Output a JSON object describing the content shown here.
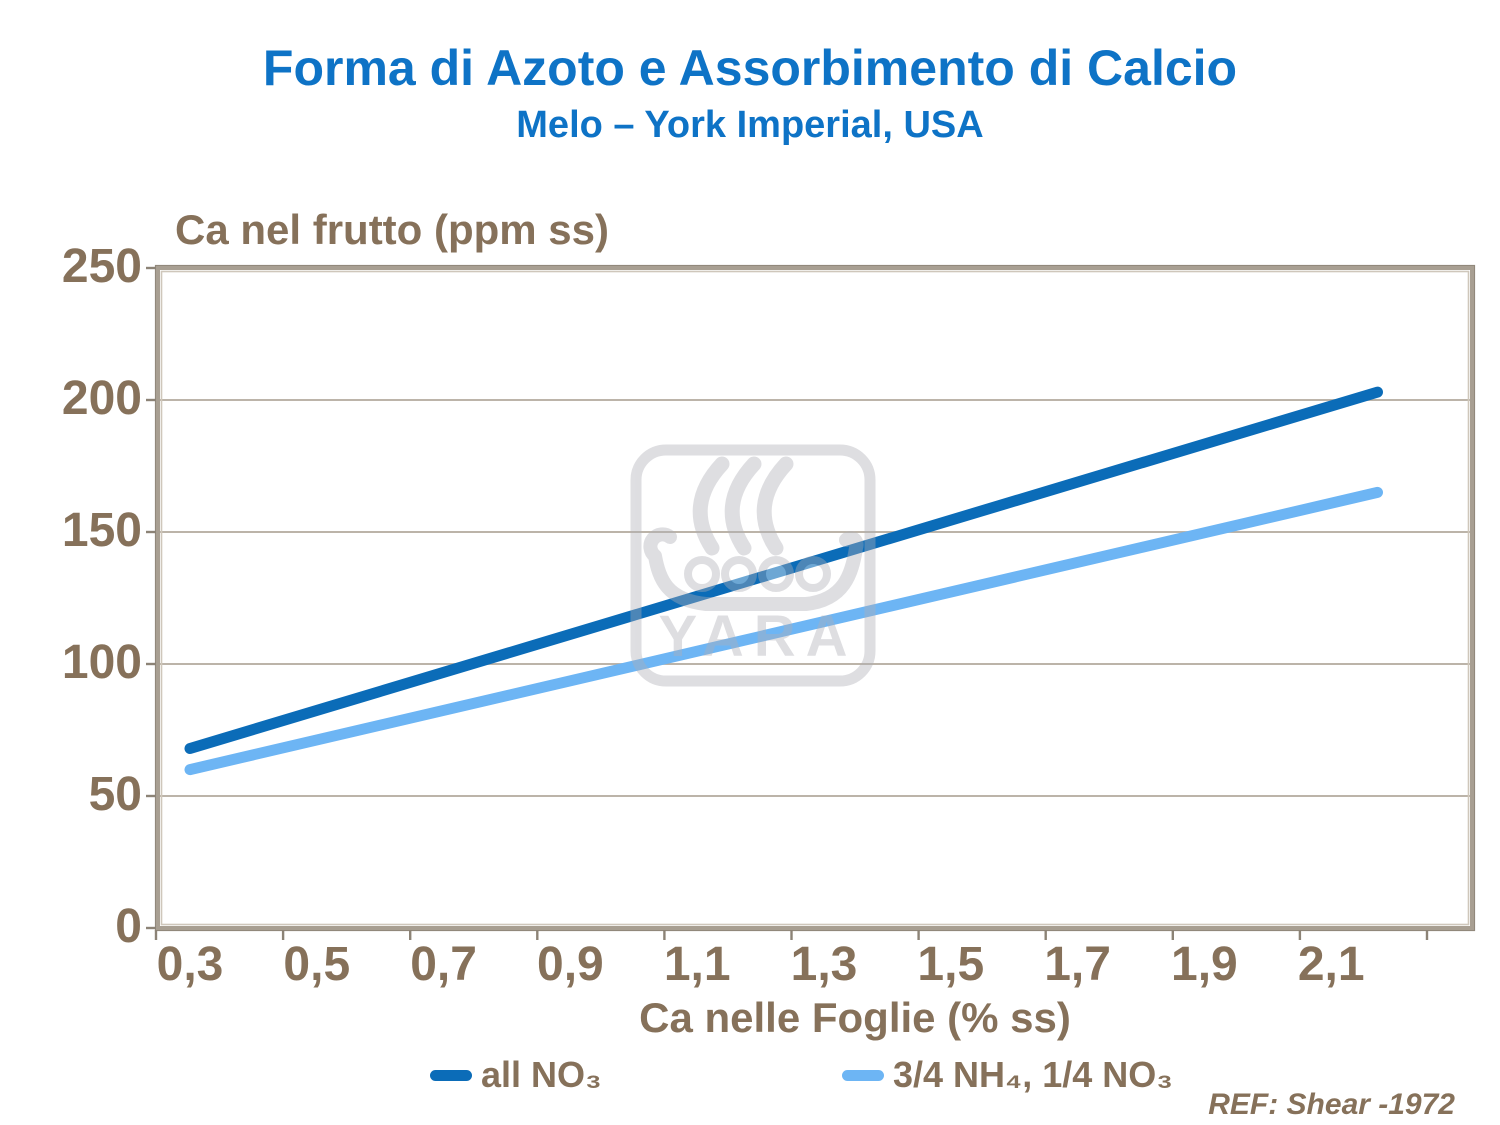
{
  "header": {
    "title": "Forma di Azoto e Assorbimento di Calcio",
    "subtitle": "Melo – York Imperial, USA"
  },
  "footer": {
    "ref": "REF: Shear -1972"
  },
  "watermark": {
    "name": "yara-viking-ship-logo",
    "text": "YARA"
  },
  "theme": {
    "title_blue": "#0E73C6",
    "axis_brown": "#86715A",
    "grid_tan": "#B3AA9D",
    "border_tan": "#A89F92",
    "watermark_gray": "#AEAEB6",
    "background": "#FFFFFF"
  },
  "chart_data": {
    "type": "line",
    "title": "Forma di Azoto e Assorbimento di Calcio",
    "subtitle": "Melo – York Imperial, USA",
    "grid": "horizontal",
    "legend_position": "bottom",
    "x_axis": {
      "label": "Ca nelle Foglie (% ss)",
      "tick_labels": [
        "0,3",
        "0,5",
        "0,7",
        "0,9",
        "1,1",
        "1,3",
        "1,5",
        "1,7",
        "1,9",
        "2,1"
      ],
      "tick_values": [
        0.3,
        0.5,
        0.7,
        0.9,
        1.1,
        1.3,
        1.5,
        1.7,
        1.9,
        2.1
      ],
      "range": [
        0.25,
        2.33
      ]
    },
    "y_axis": {
      "label": "Ca nel frutto (ppm ss)",
      "ticks": [
        0,
        50,
        100,
        150,
        200,
        250
      ],
      "range": [
        0,
        250
      ]
    },
    "series": [
      {
        "name": "all NO₃",
        "color": "#0B6CB8",
        "points": [
          {
            "x": 0.3,
            "y": 68
          },
          {
            "x": 2.2,
            "y": 203
          }
        ]
      },
      {
        "name": "3/4 NH₄, 1/4 NO₃",
        "color": "#6DB5F4",
        "points": [
          {
            "x": 0.3,
            "y": 60
          },
          {
            "x": 2.2,
            "y": 165
          }
        ]
      }
    ]
  }
}
